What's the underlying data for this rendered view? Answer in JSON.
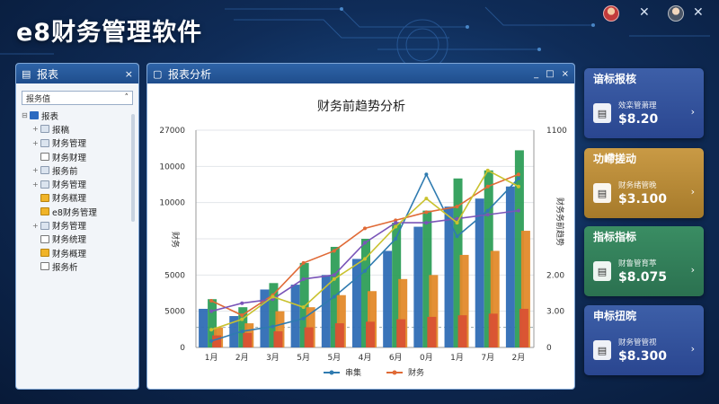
{
  "app": {
    "title": "e8财务管理软件"
  },
  "icons": {
    "avatar_1": "user-avatar",
    "avatar_2": "user-avatar",
    "close": "close-icon"
  },
  "left_panel": {
    "title": "报表",
    "close": "×",
    "search_value": "报务值",
    "search_caret": "˄",
    "tree": [
      {
        "label": "报表",
        "icon": "root",
        "level": 0
      },
      {
        "label": "报稿",
        "icon": "folder",
        "level": 1
      },
      {
        "label": "财务管理",
        "icon": "folder",
        "level": 1
      },
      {
        "label": "财务财理",
        "icon": "doc",
        "level": 1
      },
      {
        "label": "报务前",
        "icon": "folder",
        "level": 1
      },
      {
        "label": "财务管理",
        "icon": "folder",
        "level": 1
      },
      {
        "label": "财务糕理",
        "icon": "gold",
        "level": 1
      },
      {
        "label": "e8财务管理",
        "icon": "gold",
        "level": 1
      },
      {
        "label": "财务管理",
        "icon": "folder",
        "level": 1
      },
      {
        "label": "财务统理",
        "icon": "doc",
        "level": 1
      },
      {
        "label": "财务概理",
        "icon": "gold",
        "level": 1
      },
      {
        "label": "报务析",
        "icon": "doc",
        "level": 1
      }
    ]
  },
  "main_panel": {
    "title": "报表分析",
    "controls": [
      "_",
      "□",
      "×"
    ]
  },
  "chart_data": {
    "type": "bar",
    "title": "财务前趋势分析",
    "categories": [
      "1月",
      "2月",
      "3月",
      "5月",
      "5月",
      "4月",
      "6月",
      "0月",
      "1月",
      "7月",
      "2月"
    ],
    "left_ticks": [
      "27000",
      "10000",
      "10000",
      "",
      "5000",
      "5000",
      "0"
    ],
    "right_ticks": [
      "1100",
      "",
      "",
      "",
      "2.00",
      "3.00",
      "0"
    ],
    "ylabel_left": "财务",
    "ylabel_right": "财务务前趋势",
    "ylim": [
      0,
      27000
    ],
    "series": [
      {
        "kind": "bar",
        "color": "#2f6db5",
        "values": [
          4800,
          3900,
          7200,
          7800,
          9000,
          11000,
          12000,
          15000,
          17500,
          18500,
          20000
        ]
      },
      {
        "kind": "bar",
        "color": "#2e9e58",
        "values": [
          6000,
          5000,
          8000,
          10500,
          12500,
          13500,
          15500,
          17000,
          21000,
          22000,
          24500
        ]
      },
      {
        "kind": "bar",
        "color": "#e38a2b",
        "values": [
          2500,
          3000,
          4500,
          5000,
          6500,
          7000,
          8500,
          9000,
          11500,
          12000,
          14500
        ]
      },
      {
        "kind": "bar",
        "color": "#d95234",
        "values": [
          1500,
          1800,
          2000,
          2500,
          3000,
          3200,
          3500,
          3800,
          4000,
          4200,
          4800
        ]
      },
      {
        "kind": "line",
        "name": "串集",
        "color": "#2f7bb0",
        "values": [
          800,
          2000,
          2600,
          3600,
          6300,
          9500,
          13500,
          21500,
          13800,
          17000,
          21000
        ]
      },
      {
        "kind": "line",
        "name": "财务",
        "color": "#e06a36",
        "values": [
          5800,
          4000,
          6500,
          10500,
          12000,
          14800,
          15800,
          16800,
          17500,
          20000,
          21500
        ]
      },
      {
        "kind": "line",
        "color": "#7a55b8",
        "values": [
          4500,
          5500,
          6000,
          8500,
          9000,
          13000,
          15500,
          15500,
          16000,
          16500,
          17000
        ]
      },
      {
        "kind": "line",
        "color": "#c9c22f",
        "values": [
          2200,
          3500,
          6300,
          5000,
          8500,
          11000,
          15000,
          18500,
          15500,
          22000,
          20000
        ]
      }
    ],
    "legend": [
      "串集",
      "财务"
    ],
    "legend_position": "bottom-center",
    "grid": true
  },
  "cards": [
    {
      "title": "谙标报核",
      "subtitle": "效栾管萧理",
      "value": "$8.20",
      "color_top": "#3d5fa8",
      "color_bottom": "#2a4690",
      "icon": "document-icon"
    },
    {
      "title": "功嵽搓动",
      "subtitle": "财务绪管晚",
      "value": "$3.100",
      "color_top": "#c99a45",
      "color_bottom": "#a67a2a",
      "icon": "chart-icon"
    },
    {
      "title": "指标指标",
      "subtitle": "财鲁管育葶",
      "value": "$8.075",
      "color_top": "#3a8d63",
      "color_bottom": "#2b7150",
      "icon": "report-icon"
    },
    {
      "title": "申标扭晥",
      "subtitle": "财务管管视",
      "value": "$8.300",
      "color_top": "#3d5fa8",
      "color_bottom": "#2a4690",
      "icon": "wallet-icon"
    }
  ],
  "card_arrow": "›"
}
